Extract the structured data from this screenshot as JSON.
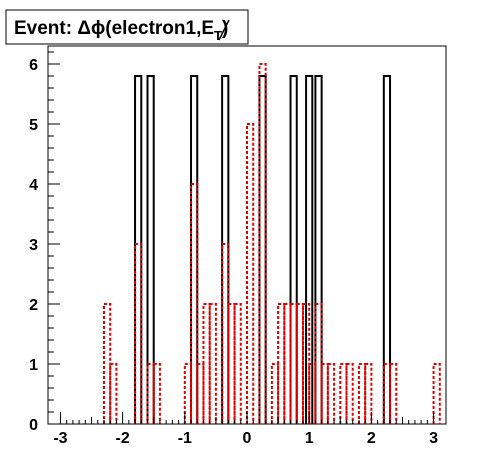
{
  "chart_data": {
    "type": "histogram",
    "title": {
      "prefix": "Event: ",
      "delta": "Δ",
      "phi": "ϕ",
      "body": "(electron1,",
      "met": "E",
      "sub": "T",
      "suffix": ")"
    },
    "xlabel": "",
    "ylabel": "",
    "xlim": [
      -3.2,
      3.2
    ],
    "ylim": [
      0,
      6.3
    ],
    "bin_width": 0.1,
    "xticks": [
      -3,
      -2,
      -1,
      0,
      1,
      2,
      3
    ],
    "xtick_labels": [
      "-3",
      "-2",
      "-1",
      "0",
      "1",
      "2",
      "3"
    ],
    "yticks": [
      0,
      1,
      2,
      3,
      4,
      5,
      6
    ],
    "ytick_labels": [
      "0",
      "1",
      "2",
      "3",
      "4",
      "5",
      "6"
    ],
    "grid": false,
    "legend": "none",
    "series": [
      {
        "style": "solid",
        "color": "#000000",
        "bins": [
          {
            "x": -1.8,
            "y": 5.8
          },
          {
            "x": -1.6,
            "y": 5.8
          },
          {
            "x": -0.9,
            "y": 5.8
          },
          {
            "x": -0.4,
            "y": 5.8
          },
          {
            "x": 0.2,
            "y": 5.8
          },
          {
            "x": 0.7,
            "y": 5.8
          },
          {
            "x": 0.95,
            "y": 5.8
          },
          {
            "x": 1.1,
            "y": 5.8
          },
          {
            "x": 2.2,
            "y": 5.8
          }
        ]
      },
      {
        "style": "dotted",
        "color": "#dd0000",
        "bins": [
          {
            "x": -2.3,
            "y": 2
          },
          {
            "x": -2.2,
            "y": 1
          },
          {
            "x": -1.8,
            "y": 3
          },
          {
            "x": -1.6,
            "y": 1
          },
          {
            "x": -1.5,
            "y": 1
          },
          {
            "x": -1.0,
            "y": 1
          },
          {
            "x": -0.9,
            "y": 4
          },
          {
            "x": -0.8,
            "y": 1
          },
          {
            "x": -0.7,
            "y": 2
          },
          {
            "x": -0.6,
            "y": 2
          },
          {
            "x": -0.4,
            "y": 3
          },
          {
            "x": -0.3,
            "y": 2
          },
          {
            "x": -0.2,
            "y": 2
          },
          {
            "x": 0.0,
            "y": 5
          },
          {
            "x": 0.2,
            "y": 6
          },
          {
            "x": 0.4,
            "y": 1
          },
          {
            "x": 0.5,
            "y": 2
          },
          {
            "x": 0.6,
            "y": 2
          },
          {
            "x": 0.7,
            "y": 2
          },
          {
            "x": 0.8,
            "y": 2
          },
          {
            "x": 0.9,
            "y": 2
          },
          {
            "x": 1.0,
            "y": 1
          },
          {
            "x": 1.1,
            "y": 2
          },
          {
            "x": 1.2,
            "y": 1
          },
          {
            "x": 1.3,
            "y": 1
          },
          {
            "x": 1.5,
            "y": 1
          },
          {
            "x": 1.6,
            "y": 1
          },
          {
            "x": 1.8,
            "y": 1
          },
          {
            "x": 1.9,
            "y": 1
          },
          {
            "x": 2.2,
            "y": 1
          },
          {
            "x": 2.3,
            "y": 1
          },
          {
            "x": 3.0,
            "y": 1
          }
        ]
      }
    ]
  }
}
